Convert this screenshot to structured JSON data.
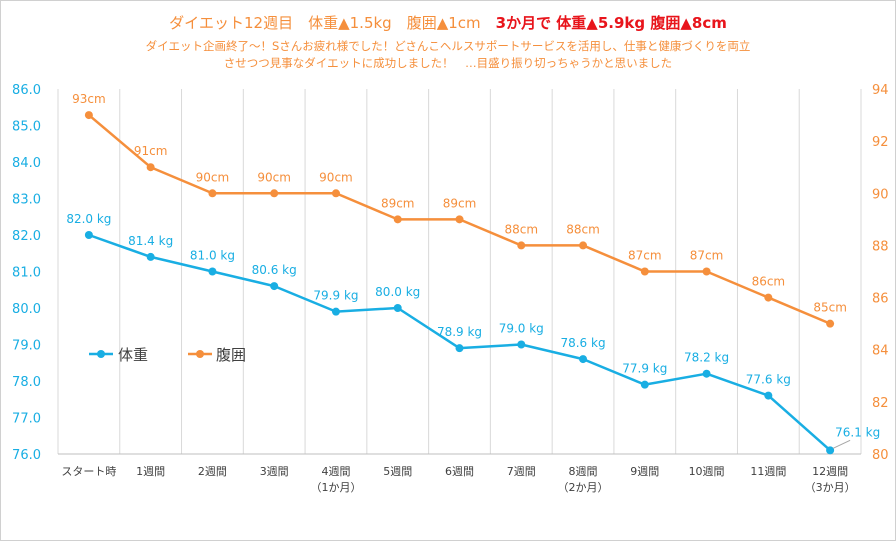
{
  "chart_data": {
    "type": "line",
    "title_parts": [
      "ダイエット12週目　体重▲1.5kg　腹囲▲1cm　",
      "3か月で 体重▲5.9kg 腹囲▲8cm"
    ],
    "subtitle_lines": [
      "ダイエット企画終了～！Sさんお疲れ様でした！どさんこヘルスサポートサービスを活用し、仕事と健康づくりを両立",
      "させつつ見事なダイエットに成功しました！　…目盛り振り切っちゃうかと思いました"
    ],
    "categories": [
      [
        "スタート時"
      ],
      [
        "1週間"
      ],
      [
        "2週間"
      ],
      [
        "3週間"
      ],
      [
        "4週間",
        "（1か月）"
      ],
      [
        "5週間"
      ],
      [
        "6週間"
      ],
      [
        "7週間"
      ],
      [
        "8週間",
        "（2か月）"
      ],
      [
        "9週間"
      ],
      [
        "10週間"
      ],
      [
        "11週間"
      ],
      [
        "12週間",
        "（3か月）"
      ]
    ],
    "series": [
      {
        "name": "体重",
        "axis": "left",
        "color": "#19aee3",
        "values": [
          82.0,
          81.4,
          81.0,
          80.6,
          79.9,
          80.0,
          78.9,
          79.0,
          78.6,
          77.9,
          78.2,
          77.6,
          76.1
        ],
        "labels": [
          "82.0 kg",
          "81.4 kg",
          "81.0 kg",
          "80.6 kg",
          "79.9 kg",
          "80.0 kg",
          "78.9 kg",
          "79.0 kg",
          "78.6 kg",
          "77.9 kg",
          "78.2 kg",
          "77.6 kg",
          "76.1 kg"
        ]
      },
      {
        "name": "腹囲",
        "axis": "right",
        "color": "#f58f3c",
        "values": [
          93,
          91,
          90,
          90,
          90,
          89,
          89,
          88,
          88,
          87,
          87,
          86,
          85
        ],
        "labels": [
          "93cm",
          "91cm",
          "90cm",
          "90cm",
          "90cm",
          "89cm",
          "89cm",
          "88cm",
          "88cm",
          "87cm",
          "87cm",
          "86cm",
          "85cm"
        ]
      }
    ],
    "y_left": {
      "min": 76.0,
      "max": 86.0,
      "ticks": [
        "76.0",
        "77.0",
        "78.0",
        "79.0",
        "80.0",
        "81.0",
        "82.0",
        "83.0",
        "84.0",
        "85.0",
        "86.0"
      ],
      "color": "#19aee3"
    },
    "y_right": {
      "min": 80,
      "max": 94,
      "ticks": [
        "80",
        "82",
        "84",
        "86",
        "88",
        "90",
        "92",
        "94"
      ],
      "color": "#f58f3c"
    },
    "grid": "vertical",
    "legend_position": "left-middle"
  }
}
